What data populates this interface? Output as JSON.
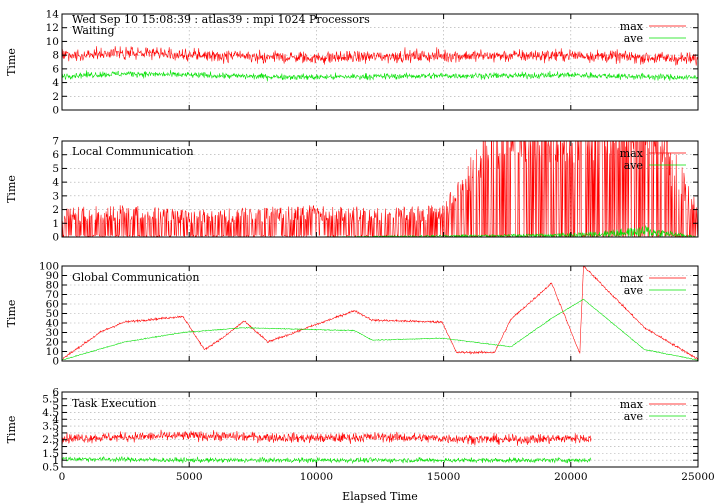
{
  "header": {
    "run_info": "Wed Sep 10 15:08:39 : atlas39 : mpi 1024 Processors"
  },
  "colors": {
    "max": "#ff0000",
    "ave": "#00e000",
    "grid": "#a8a8a8"
  },
  "chart_data": [
    {
      "type": "line",
      "title": "Waiting",
      "ylabel": "Time",
      "xlabel": "",
      "xlim": [
        0,
        25000
      ],
      "ylim": [
        0,
        14
      ],
      "yticks": [
        0,
        2,
        4,
        6,
        8,
        10,
        12,
        14
      ],
      "grid": true,
      "legend": "top-right",
      "series": [
        {
          "name": "max",
          "approx_profile": [
            [
              0,
              7.8
            ],
            [
              2500,
              8.4
            ],
            [
              5000,
              8.0
            ],
            [
              7500,
              7.8
            ],
            [
              10000,
              7.6
            ],
            [
              12500,
              7.8
            ],
            [
              15000,
              7.9
            ],
            [
              17500,
              7.9
            ],
            [
              20000,
              8.0
            ],
            [
              22500,
              7.7
            ],
            [
              25000,
              7.4
            ]
          ]
        },
        {
          "name": "ave",
          "approx_profile": [
            [
              0,
              5.0
            ],
            [
              2500,
              5.3
            ],
            [
              5000,
              5.1
            ],
            [
              7500,
              4.9
            ],
            [
              10000,
              4.8
            ],
            [
              12500,
              4.9
            ],
            [
              15000,
              5.0
            ],
            [
              17500,
              5.0
            ],
            [
              20000,
              5.1
            ],
            [
              22500,
              4.9
            ],
            [
              25000,
              4.7
            ]
          ]
        }
      ]
    },
    {
      "type": "line",
      "title": "Local Communication",
      "ylabel": "Time",
      "xlabel": "",
      "xlim": [
        0,
        25000
      ],
      "ylim": [
        0,
        7
      ],
      "yticks": [
        0,
        1,
        2,
        3,
        4,
        5,
        6,
        7
      ],
      "grid": true,
      "legend": "top-right",
      "series": [
        {
          "name": "max",
          "approx_profile": [
            [
              0,
              1.2
            ],
            [
              2500,
              1.3
            ],
            [
              5000,
              1.1
            ],
            [
              7500,
              1.2
            ],
            [
              10000,
              1.3
            ],
            [
              12500,
              1.2
            ],
            [
              15000,
              1.3
            ],
            [
              17400,
              6.0
            ],
            [
              20300,
              5.6
            ],
            [
              22950,
              6.7
            ],
            [
              25000,
              1.2
            ]
          ]
        },
        {
          "name": "ave",
          "approx_profile": [
            [
              0,
              0.02
            ],
            [
              10000,
              0.02
            ],
            [
              17400,
              0.2
            ],
            [
              20300,
              0.3
            ],
            [
              22950,
              0.8
            ],
            [
              25000,
              0.02
            ]
          ]
        }
      ]
    },
    {
      "type": "line",
      "title": "Global Communication",
      "ylabel": "Time",
      "xlabel": "",
      "xlim": [
        0,
        25000
      ],
      "ylim": [
        0,
        100
      ],
      "yticks": [
        0,
        10,
        20,
        30,
        40,
        50,
        60,
        70,
        80,
        90,
        100
      ],
      "grid": true,
      "legend": "top-right",
      "series": [
        {
          "name": "max",
          "approx_profile": [
            [
              0,
              2
            ],
            [
              1550,
              31
            ],
            [
              2450,
              41
            ],
            [
              4750,
              47
            ],
            [
              5600,
              12
            ],
            [
              6400,
              26
            ],
            [
              7150,
              42
            ],
            [
              8100,
              20
            ],
            [
              11500,
              53
            ],
            [
              12200,
              43
            ],
            [
              14950,
              41
            ],
            [
              15500,
              9
            ],
            [
              17000,
              9
            ],
            [
              17650,
              44
            ],
            [
              19250,
              82
            ],
            [
              20350,
              8
            ],
            [
              20500,
              100
            ],
            [
              22900,
              35
            ],
            [
              25000,
              2
            ]
          ]
        },
        {
          "name": "ave",
          "approx_profile": [
            [
              0,
              1
            ],
            [
              2450,
              20
            ],
            [
              4750,
              30
            ],
            [
              7150,
              35
            ],
            [
              11500,
              32
            ],
            [
              12200,
              22
            ],
            [
              14950,
              24
            ],
            [
              17650,
              15
            ],
            [
              19250,
              45
            ],
            [
              20500,
              65
            ],
            [
              22900,
              12
            ],
            [
              25000,
              1
            ]
          ]
        }
      ]
    },
    {
      "type": "line",
      "title": "Task Execution",
      "ylabel": "Time",
      "xlabel": "Elapsed Time",
      "xlim": [
        0,
        25000
      ],
      "ylim": [
        0.5,
        6
      ],
      "yticks": [
        0.5,
        1,
        1.5,
        2,
        2.5,
        3,
        3.5,
        4,
        4.5,
        5,
        5.5,
        6
      ],
      "grid": true,
      "legend": "top-right",
      "series": [
        {
          "name": "max",
          "approx_profile": [
            [
              0,
              2.6
            ],
            [
              2500,
              2.7
            ],
            [
              5000,
              2.8
            ],
            [
              7500,
              2.7
            ],
            [
              10000,
              2.6
            ],
            [
              12500,
              2.7
            ],
            [
              15000,
              2.6
            ],
            [
              17500,
              2.5
            ],
            [
              20000,
              2.6
            ],
            [
              20800,
              2.6
            ]
          ]
        },
        {
          "name": "ave",
          "approx_profile": [
            [
              0,
              1.1
            ],
            [
              2500,
              1.05
            ],
            [
              5000,
              1.0
            ],
            [
              7500,
              1.0
            ],
            [
              10000,
              1.0
            ],
            [
              12500,
              1.0
            ],
            [
              15000,
              1.0
            ],
            [
              17500,
              1.0
            ],
            [
              20000,
              1.0
            ],
            [
              20800,
              1.0
            ]
          ]
        }
      ]
    }
  ]
}
